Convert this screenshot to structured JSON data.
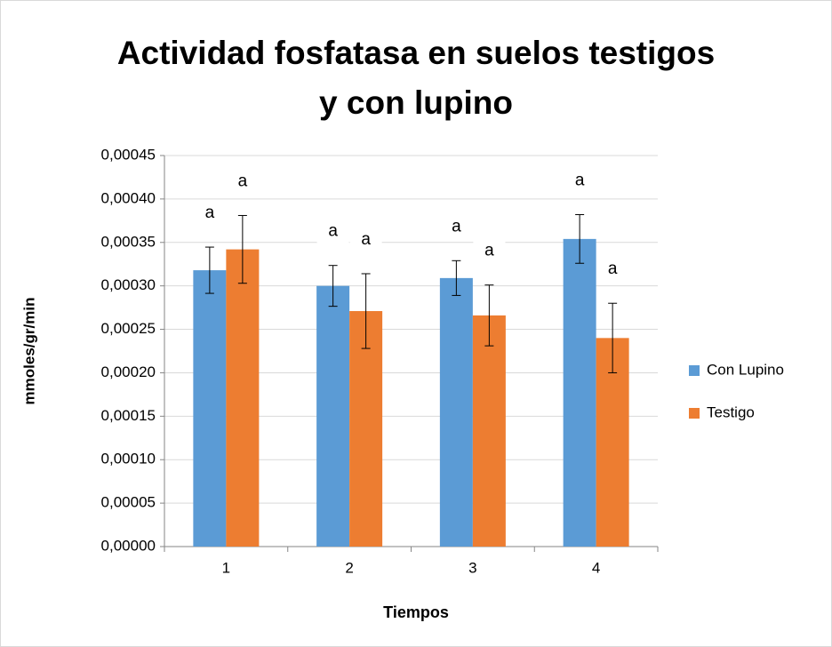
{
  "chart_data": {
    "type": "bar",
    "title": [
      "Actividad fosfatasa en suelos testigos",
      "y con lupino"
    ],
    "x_label": "Tiempos",
    "y_label": "mmoles/gr/min",
    "categories": [
      "1",
      "2",
      "3",
      "4"
    ],
    "series": [
      {
        "name": "Con Lupino",
        "color": "#5b9bd5",
        "values": [
          0.000318,
          0.0003,
          0.000309,
          0.000354
        ],
        "errors": [
          2.66e-05,
          2.35e-05,
          2e-05,
          2.8e-05
        ],
        "annotations": [
          "a",
          "a",
          "a",
          "a"
        ]
      },
      {
        "name": "Testigo",
        "color": "#ed7d31",
        "values": [
          0.000342,
          0.000271,
          0.000266,
          0.00024
        ],
        "errors": [
          3.9e-05,
          4.3e-05,
          3.5e-05,
          4e-05
        ],
        "annotations": [
          "a",
          "a",
          "a",
          "a"
        ]
      }
    ],
    "ylim": [
      0,
      0.00045
    ],
    "yticks": [
      {
        "value": 0,
        "label": "0,00000"
      },
      {
        "value": 5e-05,
        "label": "0,00005"
      },
      {
        "value": 0.0001,
        "label": "0,00010"
      },
      {
        "value": 0.00015,
        "label": "0,00015"
      },
      {
        "value": 0.0002,
        "label": "0,00020"
      },
      {
        "value": 0.00025,
        "label": "0,00025"
      },
      {
        "value": 0.0003,
        "label": "0,00030"
      },
      {
        "value": 0.00035,
        "label": "0,00035"
      },
      {
        "value": 0.0004,
        "label": "0,00040"
      },
      {
        "value": 0.00045,
        "label": "0,00045"
      }
    ],
    "grid": true,
    "legend": "right"
  }
}
